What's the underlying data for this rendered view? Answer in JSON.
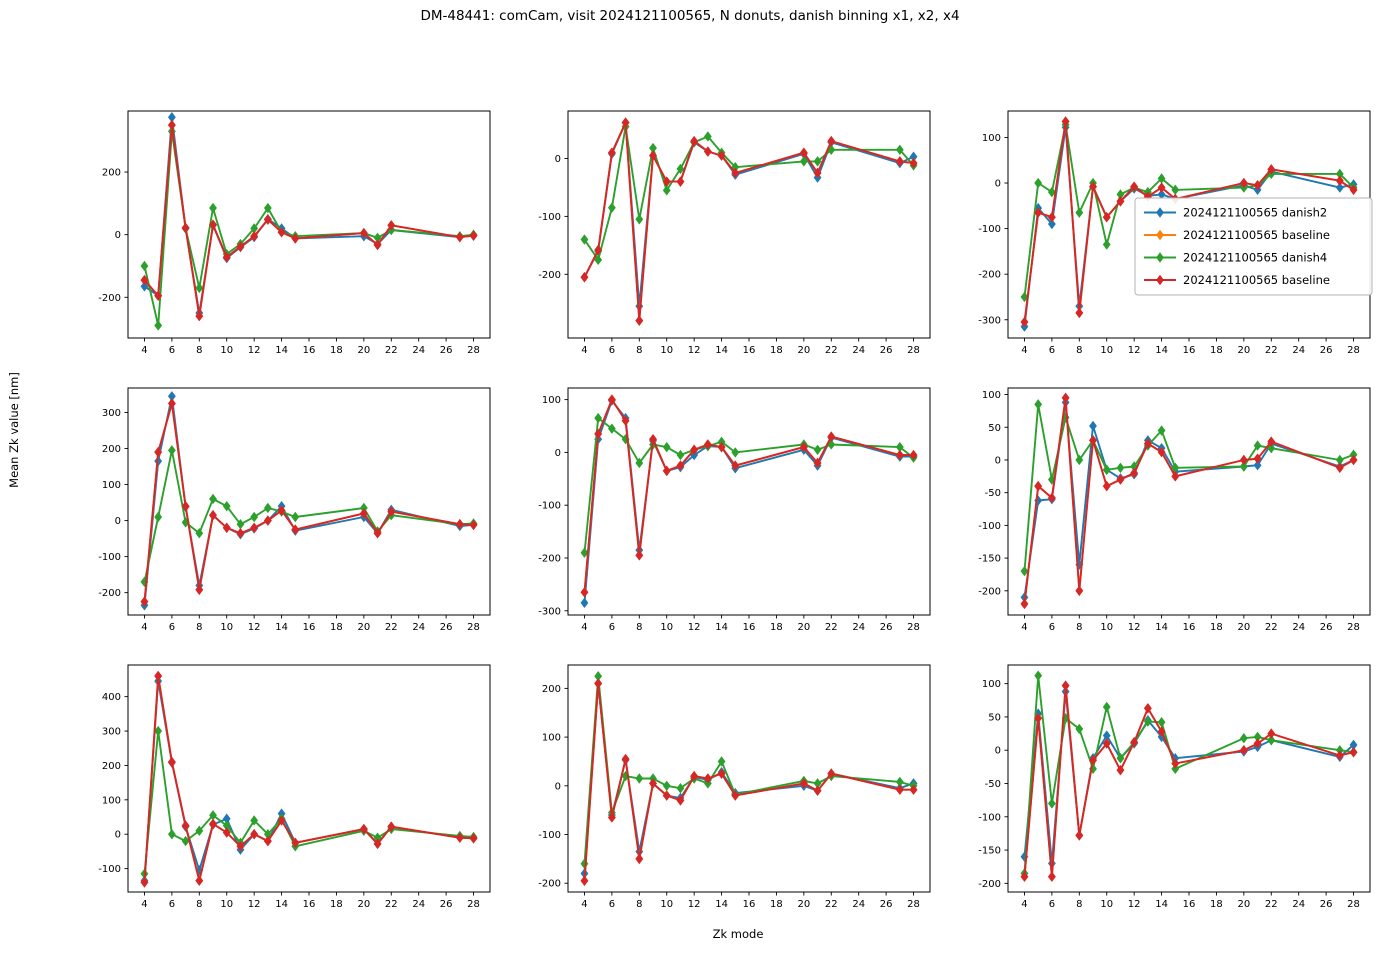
{
  "figure": {
    "title": "DM-48441:  comCam, visit 2024121100565, N donuts, danish binning x1, x2, x4",
    "xlabel": "Zk mode",
    "ylabel": "Mean Zk value [nm]"
  },
  "legend": {
    "location": "top-right-subplot",
    "entries": [
      {
        "label": "2024121100565 danish2",
        "color": "#1f77b4"
      },
      {
        "label": "2024121100565 baseline",
        "color": "#ff7f0e"
      },
      {
        "label": "2024121100565 danish4",
        "color": "#2ca02c"
      },
      {
        "label": "2024121100565 baseline",
        "color": "#d62728"
      }
    ]
  },
  "chart_data": {
    "type": "line",
    "marker": "thin-diamond",
    "grid": false,
    "legend_subplot_index": 2,
    "x": [
      4,
      5,
      6,
      7,
      8,
      9,
      10,
      11,
      12,
      13,
      14,
      15,
      20,
      21,
      22,
      27,
      28
    ],
    "xticks": [
      4,
      6,
      8,
      10,
      12,
      14,
      16,
      18,
      20,
      22,
      24,
      26,
      28
    ],
    "xlim": [
      2.8,
      29.2
    ],
    "series_meta": [
      {
        "name": "2024121100565 danish2",
        "color": "#1f77b4"
      },
      {
        "name": "2024121100565 baseline",
        "color": "#ff7f0e"
      },
      {
        "name": "2024121100565 danish4",
        "color": "#2ca02c"
      },
      {
        "name": "2024121100565 baseline",
        "color": "#d62728"
      }
    ],
    "subplots": [
      {
        "name": "row1-col1",
        "yticks": [
          -200,
          0,
          200
        ],
        "ylim": [
          -330,
          395
        ],
        "series_values": [
          [
            -165,
            -195,
            375,
            20,
            -250,
            30,
            -75,
            -40,
            -8,
            50,
            20,
            -12,
            -5,
            -30,
            15,
            -8,
            -3
          ],
          [
            -145,
            -195,
            350,
            22,
            -260,
            32,
            -72,
            -38,
            -5,
            48,
            8,
            -12,
            5,
            -33,
            30,
            -8,
            -3
          ],
          [
            -100,
            -290,
            330,
            20,
            -170,
            85,
            -62,
            -30,
            20,
            85,
            8,
            -5,
            5,
            -10,
            15,
            -5,
            0
          ],
          [
            -145,
            -195,
            350,
            22,
            -260,
            32,
            -72,
            -38,
            -5,
            48,
            8,
            -12,
            5,
            -33,
            30,
            -8,
            -3
          ]
        ]
      },
      {
        "name": "row1-col2",
        "yticks": [
          -200,
          -100,
          0
        ],
        "ylim": [
          -310,
          82
        ],
        "series_values": [
          [
            -205,
            -160,
            8,
            62,
            -255,
            5,
            -40,
            -40,
            28,
            12,
            5,
            -28,
            8,
            -33,
            28,
            -8,
            3
          ],
          [
            -205,
            -158,
            10,
            62,
            -280,
            5,
            -40,
            -40,
            30,
            12,
            5,
            -25,
            10,
            -25,
            30,
            -5,
            -8
          ],
          [
            -140,
            -175,
            -85,
            55,
            -105,
            18,
            -55,
            -18,
            28,
            38,
            10,
            -15,
            -5,
            -5,
            15,
            15,
            -12
          ],
          [
            -205,
            -158,
            10,
            62,
            -280,
            5,
            -40,
            -40,
            30,
            12,
            5,
            -25,
            10,
            -25,
            30,
            -5,
            -8
          ]
        ]
      },
      {
        "name": "row1-col3",
        "yticks": [
          -300,
          -200,
          -100,
          0,
          100
        ],
        "ylim": [
          -340,
          158
        ],
        "series_values": [
          [
            -315,
            -55,
            -90,
            122,
            -270,
            -8,
            -75,
            -40,
            -12,
            -28,
            -25,
            -35,
            -5,
            -15,
            25,
            -10,
            -3
          ],
          [
            -305,
            -65,
            -75,
            135,
            -285,
            -8,
            -75,
            -40,
            -8,
            -30,
            -10,
            -35,
            0,
            -5,
            30,
            5,
            -15
          ],
          [
            -250,
            0,
            -20,
            128,
            -65,
            0,
            -135,
            -25,
            -10,
            -20,
            10,
            -15,
            -10,
            -5,
            20,
            20,
            -10
          ],
          [
            -305,
            -65,
            -75,
            135,
            -285,
            -8,
            -75,
            -40,
            -8,
            -30,
            -10,
            -35,
            0,
            -5,
            30,
            5,
            -15
          ]
        ]
      },
      {
        "name": "row2-col1",
        "yticks": [
          -200,
          -100,
          0,
          100,
          200,
          300
        ],
        "ylim": [
          -262,
          368
        ],
        "series_values": [
          [
            -235,
            165,
            345,
            38,
            -180,
            15,
            -20,
            -38,
            -22,
            0,
            40,
            -28,
            10,
            -35,
            30,
            -15,
            -12
          ],
          [
            -225,
            190,
            325,
            40,
            -192,
            15,
            -20,
            -35,
            -20,
            0,
            28,
            -25,
            20,
            -35,
            25,
            -10,
            -12
          ],
          [
            -170,
            10,
            195,
            -5,
            -35,
            60,
            40,
            -10,
            10,
            35,
            25,
            10,
            35,
            -30,
            15,
            -10,
            -8
          ],
          [
            -225,
            190,
            325,
            40,
            -192,
            15,
            -20,
            -35,
            -20,
            0,
            28,
            -25,
            20,
            -35,
            25,
            -10,
            -12
          ]
        ]
      },
      {
        "name": "row2-col2",
        "yticks": [
          -300,
          -200,
          -100,
          0,
          100
        ],
        "ylim": [
          -308,
          122
        ],
        "series_values": [
          [
            -285,
            25,
            98,
            65,
            -185,
            22,
            -35,
            -28,
            -5,
            12,
            10,
            -30,
            5,
            -25,
            28,
            -8,
            -8
          ],
          [
            -265,
            35,
            100,
            60,
            -195,
            25,
            -35,
            -25,
            5,
            15,
            10,
            -25,
            10,
            -20,
            30,
            -5,
            -5
          ],
          [
            -190,
            65,
            45,
            25,
            -20,
            15,
            10,
            -5,
            5,
            12,
            20,
            0,
            15,
            5,
            15,
            10,
            -10
          ],
          [
            -265,
            35,
            100,
            60,
            -195,
            25,
            -35,
            -25,
            5,
            15,
            10,
            -25,
            10,
            -20,
            30,
            -5,
            -5
          ]
        ]
      },
      {
        "name": "row2-col3",
        "yticks": [
          -200,
          -150,
          -100,
          -50,
          0,
          50,
          100
        ],
        "ylim": [
          -237,
          110
        ],
        "series_values": [
          [
            -210,
            -62,
            -60,
            88,
            -160,
            52,
            -15,
            -28,
            -22,
            30,
            18,
            -18,
            -10,
            -8,
            25,
            -10,
            0
          ],
          [
            -220,
            -40,
            -58,
            95,
            -200,
            30,
            -40,
            -30,
            -20,
            25,
            12,
            -25,
            0,
            2,
            28,
            -12,
            0
          ],
          [
            -170,
            85,
            -30,
            65,
            0,
            30,
            -15,
            -12,
            -10,
            22,
            45,
            -12,
            -10,
            22,
            18,
            0,
            8
          ],
          [
            -220,
            -40,
            -58,
            95,
            -200,
            30,
            -40,
            -30,
            -20,
            25,
            12,
            -25,
            0,
            2,
            28,
            -12,
            0
          ]
        ]
      },
      {
        "name": "row3-col1",
        "yticks": [
          -100,
          0,
          100,
          200,
          300,
          400
        ],
        "ylim": [
          -168,
          492
        ],
        "series_values": [
          [
            -135,
            445,
            208,
            22,
            -105,
            28,
            45,
            -45,
            0,
            -20,
            60,
            -25,
            15,
            -28,
            22,
            -10,
            -12
          ],
          [
            -140,
            460,
            210,
            25,
            -135,
            30,
            5,
            -35,
            0,
            -20,
            40,
            -25,
            15,
            -28,
            22,
            -10,
            -12
          ],
          [
            -115,
            300,
            0,
            -20,
            10,
            55,
            25,
            -25,
            40,
            0,
            45,
            -35,
            10,
            -10,
            15,
            -5,
            -8
          ],
          [
            -140,
            460,
            210,
            25,
            -135,
            30,
            5,
            -35,
            0,
            -20,
            40,
            -25,
            15,
            -28,
            22,
            -10,
            -12
          ]
        ]
      },
      {
        "name": "row3-col2",
        "yticks": [
          -200,
          -100,
          0,
          100,
          200
        ],
        "ylim": [
          -218,
          248
        ],
        "series_values": [
          [
            -180,
            210,
            -60,
            53,
            -135,
            5,
            -20,
            -25,
            18,
            12,
            28,
            -15,
            0,
            -10,
            25,
            -5,
            5
          ],
          [
            -195,
            210,
            -65,
            55,
            -150,
            5,
            -20,
            -30,
            20,
            15,
            25,
            -20,
            5,
            -10,
            25,
            -8,
            -8
          ],
          [
            -160,
            225,
            -55,
            20,
            15,
            15,
            0,
            -5,
            15,
            5,
            50,
            -18,
            10,
            5,
            20,
            8,
            0
          ],
          [
            -195,
            210,
            -65,
            55,
            -150,
            5,
            -20,
            -30,
            20,
            15,
            25,
            -20,
            5,
            -10,
            25,
            -8,
            -8
          ]
        ]
      },
      {
        "name": "row3-col3",
        "yticks": [
          -200,
          -150,
          -100,
          -50,
          0,
          50,
          100
        ],
        "ylim": [
          -213,
          128
        ],
        "series_values": [
          [
            -160,
            55,
            -170,
            88,
            -128,
            -12,
            22,
            -12,
            10,
            45,
            20,
            -12,
            -2,
            5,
            15,
            -10,
            8
          ],
          [
            -190,
            48,
            -190,
            97,
            -128,
            -15,
            10,
            -30,
            12,
            63,
            28,
            -20,
            0,
            10,
            25,
            -8,
            -3
          ],
          [
            -185,
            112,
            -80,
            48,
            32,
            -28,
            65,
            -12,
            12,
            43,
            42,
            -28,
            18,
            20,
            15,
            0,
            -3
          ],
          [
            -190,
            48,
            -190,
            97,
            -128,
            -15,
            10,
            -30,
            12,
            63,
            28,
            -20,
            0,
            10,
            25,
            -8,
            -3
          ]
        ]
      }
    ]
  }
}
